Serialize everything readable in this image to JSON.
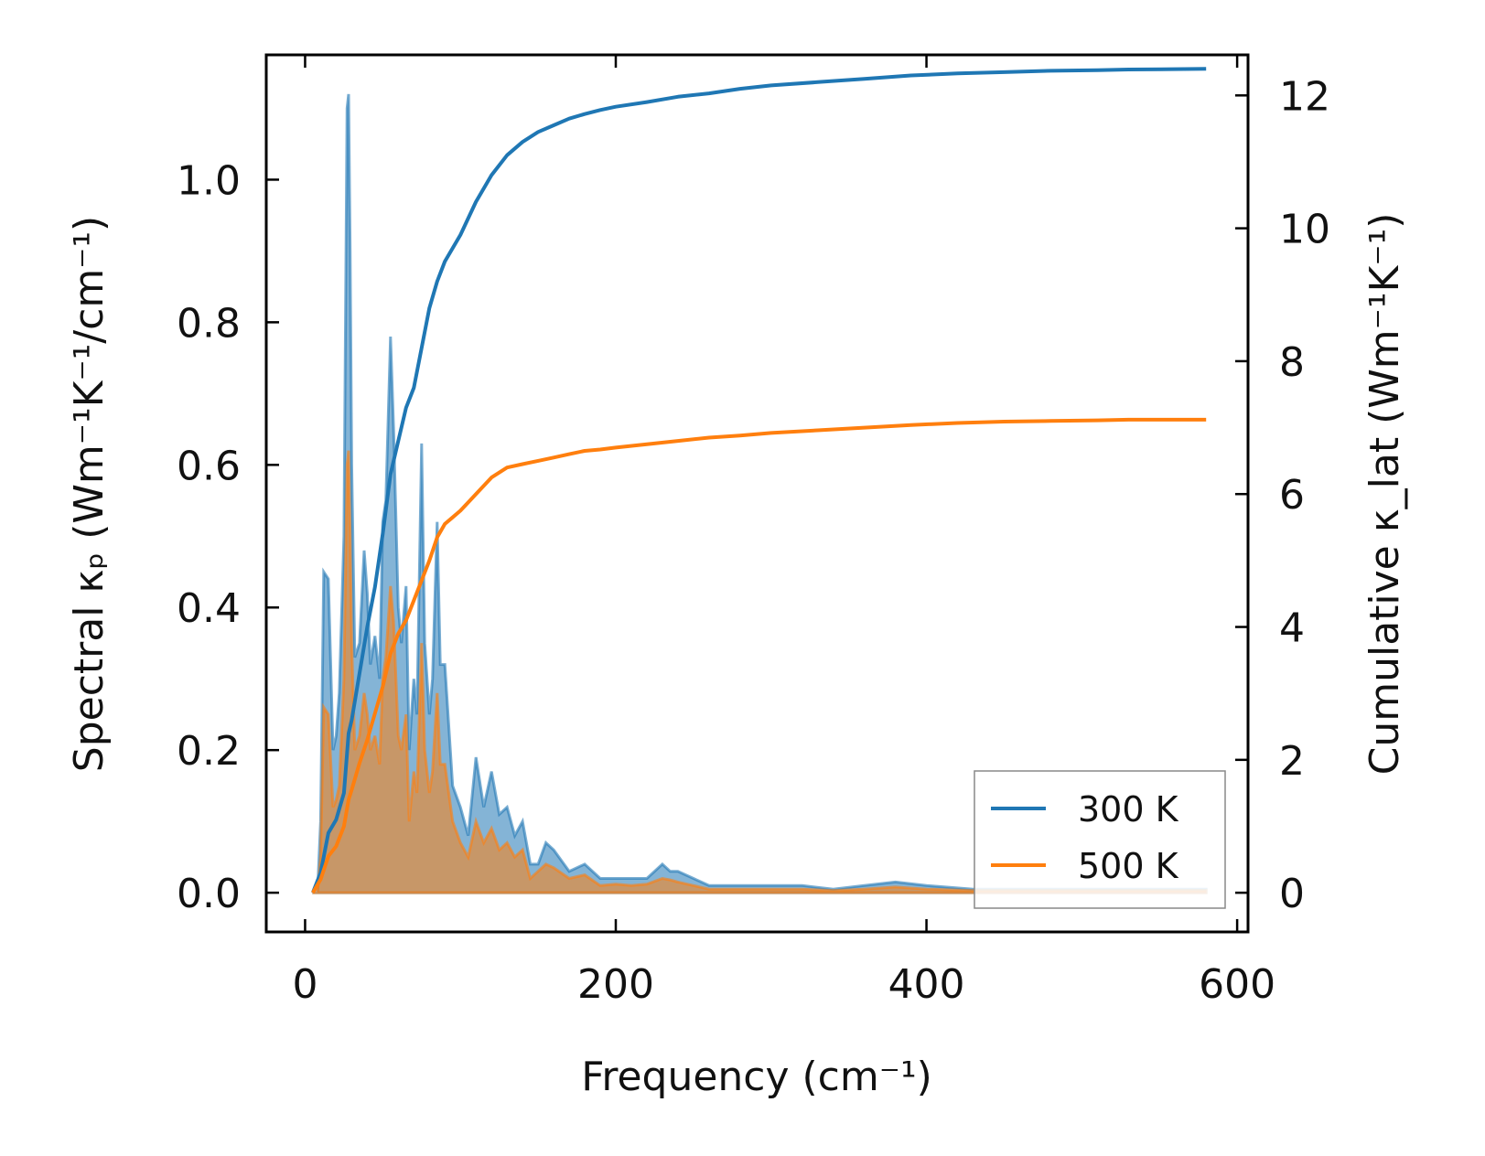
{
  "chart_data": {
    "type": "line",
    "title": "",
    "xlabel": "Frequency (cm⁻¹)",
    "ylabel": "Spectral κₚ (Wm⁻¹K⁻¹/cm⁻¹)",
    "y2label": "Cumulative κ_lat (Wm⁻¹K⁻¹)",
    "xlim": [
      -25,
      607
    ],
    "ylim": [
      -0.055,
      1.175
    ],
    "y2lim": [
      -0.59,
      12.61
    ],
    "xticks": [
      0,
      200,
      400,
      600
    ],
    "yticks": [
      0.0,
      0.2,
      0.4,
      0.6,
      0.8,
      1.0
    ],
    "y2ticks": [
      0,
      2,
      4,
      6,
      8,
      10,
      12
    ],
    "xtick_labels": [
      "0",
      "200",
      "400",
      "600"
    ],
    "ytick_labels": [
      "0.0",
      "0.2",
      "0.4",
      "0.6",
      "0.8",
      "1.0"
    ],
    "y2tick_labels": [
      "0",
      "2",
      "4",
      "6",
      "8",
      "10",
      "12"
    ],
    "legend": {
      "position": "lower-right",
      "entries": [
        "300 K",
        "500 K"
      ]
    },
    "grid": false,
    "series": [
      {
        "name": "300 K",
        "color": "#1f77b4",
        "axis": "right",
        "style": "line",
        "x": [
          5,
          10,
          15,
          20,
          25,
          28,
          30,
          35,
          40,
          45,
          50,
          55,
          60,
          65,
          70,
          75,
          80,
          85,
          90,
          95,
          100,
          110,
          120,
          130,
          140,
          150,
          160,
          170,
          180,
          190,
          200,
          220,
          240,
          260,
          280,
          300,
          330,
          360,
          390,
          420,
          450,
          480,
          510,
          530,
          580
        ],
        "y": [
          0,
          0.3,
          0.9,
          1.1,
          1.5,
          2.4,
          2.6,
          3.3,
          4.0,
          4.6,
          5.4,
          6.3,
          6.8,
          7.3,
          7.6,
          8.2,
          8.8,
          9.2,
          9.5,
          9.7,
          9.9,
          10.4,
          10.8,
          11.1,
          11.3,
          11.45,
          11.55,
          11.65,
          11.72,
          11.78,
          11.83,
          11.9,
          11.98,
          12.03,
          12.1,
          12.15,
          12.2,
          12.25,
          12.3,
          12.33,
          12.35,
          12.37,
          12.38,
          12.39,
          12.4
        ]
      },
      {
        "name": "500 K",
        "color": "#ff7f0e",
        "axis": "right",
        "style": "line",
        "x": [
          5,
          10,
          15,
          20,
          25,
          28,
          30,
          35,
          40,
          45,
          50,
          55,
          60,
          65,
          70,
          75,
          80,
          85,
          90,
          95,
          100,
          110,
          120,
          130,
          140,
          150,
          160,
          170,
          180,
          190,
          200,
          220,
          240,
          260,
          280,
          300,
          330,
          360,
          390,
          420,
          450,
          480,
          510,
          530,
          580
        ],
        "y": [
          0,
          0.2,
          0.55,
          0.7,
          1.0,
          1.4,
          1.55,
          1.95,
          2.3,
          2.7,
          3.1,
          3.6,
          3.9,
          4.1,
          4.4,
          4.7,
          5.0,
          5.35,
          5.55,
          5.65,
          5.75,
          6.0,
          6.25,
          6.4,
          6.45,
          6.5,
          6.55,
          6.6,
          6.65,
          6.67,
          6.7,
          6.75,
          6.8,
          6.85,
          6.88,
          6.92,
          6.96,
          7.0,
          7.04,
          7.07,
          7.09,
          7.1,
          7.11,
          7.12,
          7.12
        ]
      },
      {
        "name": "",
        "color": "#1f77b4",
        "axis": "left",
        "style": "fill",
        "x": [
          5,
          8,
          10,
          12,
          15,
          18,
          20,
          22,
          25,
          27,
          28,
          29,
          30,
          32,
          35,
          38,
          40,
          42,
          45,
          48,
          50,
          52,
          55,
          57,
          60,
          62,
          65,
          67,
          70,
          72,
          75,
          77,
          80,
          82,
          85,
          87,
          90,
          95,
          100,
          105,
          110,
          115,
          120,
          125,
          130,
          135,
          140,
          145,
          150,
          155,
          160,
          170,
          180,
          190,
          200,
          210,
          220,
          230,
          235,
          240,
          250,
          260,
          270,
          280,
          300,
          320,
          340,
          360,
          380,
          400,
          430,
          460,
          500,
          540,
          580
        ],
        "y": [
          0,
          0,
          0.1,
          0.45,
          0.44,
          0.2,
          0.22,
          0.28,
          0.5,
          1.1,
          1.12,
          0.9,
          0.6,
          0.33,
          0.35,
          0.48,
          0.42,
          0.32,
          0.36,
          0.3,
          0.52,
          0.55,
          0.78,
          0.65,
          0.4,
          0.35,
          0.43,
          0.2,
          0.3,
          0.25,
          0.63,
          0.35,
          0.25,
          0.3,
          0.52,
          0.32,
          0.32,
          0.15,
          0.12,
          0.08,
          0.19,
          0.12,
          0.17,
          0.11,
          0.12,
          0.08,
          0.1,
          0.04,
          0.04,
          0.07,
          0.06,
          0.03,
          0.04,
          0.02,
          0.02,
          0.02,
          0.02,
          0.04,
          0.03,
          0.03,
          0.02,
          0.01,
          0.01,
          0.01,
          0.01,
          0.01,
          0.005,
          0.01,
          0.015,
          0.01,
          0.005,
          0.005,
          0.005,
          0.005,
          0.005
        ]
      },
      {
        "name": "",
        "color": "#ff7f0e",
        "axis": "left",
        "style": "fill",
        "x": [
          5,
          8,
          10,
          12,
          15,
          18,
          20,
          22,
          25,
          27,
          28,
          29,
          30,
          32,
          35,
          38,
          40,
          42,
          45,
          48,
          50,
          52,
          55,
          57,
          60,
          62,
          65,
          67,
          70,
          72,
          75,
          77,
          80,
          82,
          85,
          87,
          90,
          95,
          100,
          105,
          110,
          115,
          120,
          125,
          130,
          135,
          140,
          145,
          150,
          155,
          160,
          170,
          180,
          190,
          200,
          210,
          220,
          230,
          235,
          240,
          250,
          260,
          270,
          280,
          300,
          320,
          340,
          360,
          380,
          400,
          430,
          460,
          500,
          540,
          580
        ],
        "y": [
          0,
          0,
          0.05,
          0.26,
          0.25,
          0.12,
          0.13,
          0.15,
          0.3,
          0.6,
          0.62,
          0.5,
          0.35,
          0.2,
          0.22,
          0.28,
          0.25,
          0.2,
          0.22,
          0.18,
          0.3,
          0.33,
          0.43,
          0.38,
          0.22,
          0.2,
          0.25,
          0.1,
          0.17,
          0.14,
          0.35,
          0.2,
          0.14,
          0.17,
          0.28,
          0.18,
          0.18,
          0.1,
          0.07,
          0.05,
          0.1,
          0.07,
          0.09,
          0.06,
          0.07,
          0.05,
          0.06,
          0.02,
          0.03,
          0.04,
          0.035,
          0.02,
          0.025,
          0.01,
          0.012,
          0.01,
          0.012,
          0.02,
          0.018,
          0.015,
          0.01,
          0.005,
          0.005,
          0.005,
          0.005,
          0.005,
          0.003,
          0.005,
          0.008,
          0.005,
          0.003,
          0.003,
          0.003,
          0.003,
          0.003
        ]
      }
    ]
  }
}
